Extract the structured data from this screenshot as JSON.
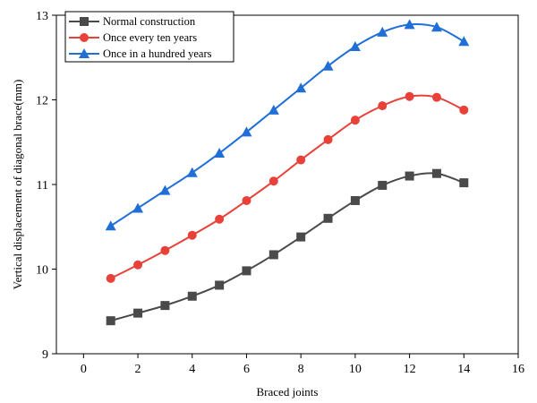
{
  "chart_data": {
    "type": "line",
    "title": "",
    "xlabel": "Braced joints",
    "ylabel": "Vertical displacement of diagonal brace(mm)",
    "xlim": [
      -1,
      16
    ],
    "ylim": [
      9,
      13
    ],
    "xticks": [
      0,
      2,
      4,
      6,
      8,
      10,
      12,
      14,
      16
    ],
    "yticks": [
      9,
      10,
      11,
      12,
      13
    ],
    "grid": false,
    "legend_position": "top-left",
    "x": [
      1,
      2,
      3,
      4,
      5,
      6,
      7,
      8,
      9,
      10,
      11,
      12,
      13,
      14
    ],
    "series": [
      {
        "name": "Normal construction",
        "color": "#4a4a4a",
        "marker": "square",
        "values": [
          9.39,
          9.48,
          9.57,
          9.68,
          9.81,
          9.98,
          10.17,
          10.38,
          10.6,
          10.81,
          10.99,
          11.1,
          11.13,
          11.02
        ]
      },
      {
        "name": "Once every ten years",
        "color": "#e8413a",
        "marker": "circle",
        "values": [
          9.89,
          10.05,
          10.22,
          10.4,
          10.59,
          10.81,
          11.04,
          11.29,
          11.53,
          11.76,
          11.93,
          12.04,
          12.03,
          11.88
        ]
      },
      {
        "name": "Once in a hundred years",
        "color": "#1f6fd6",
        "marker": "triangle",
        "values": [
          10.51,
          10.72,
          10.93,
          11.14,
          11.37,
          11.62,
          11.88,
          12.14,
          12.4,
          12.63,
          12.8,
          12.89,
          12.86,
          12.69
        ]
      }
    ]
  }
}
